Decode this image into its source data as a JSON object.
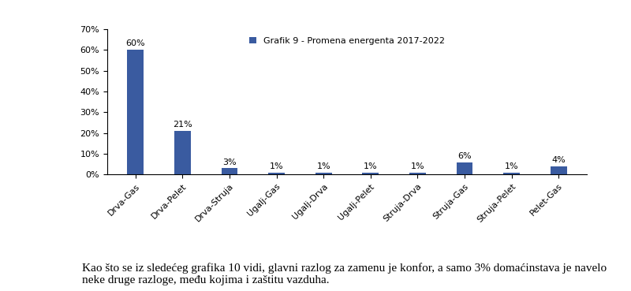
{
  "chart_data": {
    "type": "bar",
    "categories": [
      "Drva-Gas",
      "Drva-Pelet",
      "Drva-Struja",
      "Ugalj-Gas",
      "Ugalj-Drva",
      "Ugalj-Pelet",
      "Struja-Drva",
      "Struja-Gas",
      "Struja-Pelet",
      "Pelet-Gas"
    ],
    "series": [
      {
        "name": "Grafik 9 - Promena energenta 2017-2022",
        "color": "#3a5ba0",
        "values": [
          60,
          21,
          3,
          1,
          1,
          1,
          1,
          6,
          1,
          4
        ],
        "value_labels": [
          "60%",
          "21%",
          "3%",
          "1%",
          "1%",
          "1%",
          "1%",
          "6%",
          "1%",
          "4%"
        ]
      }
    ],
    "ylim": [
      0,
      70
    ],
    "yticks": [
      {
        "value": 0,
        "label": "0%"
      },
      {
        "value": 10,
        "label": "10%"
      },
      {
        "value": 20,
        "label": "20%"
      },
      {
        "value": 30,
        "label": "30%"
      },
      {
        "value": 40,
        "label": "40%"
      },
      {
        "value": 50,
        "label": "50%"
      },
      {
        "value": 60,
        "label": "60%"
      },
      {
        "value": 70,
        "label": "70%"
      }
    ],
    "grid": false,
    "legend": "upper center",
    "data_labels": true,
    "annotations": [
      "Kao što se iz sledećeg grafika 10 vidi, glavni razlog za zamenu je konfor, a samo 3% domaćinstava je navelo neke druge razloge, među kojima i zaštitu vazduha."
    ]
  }
}
